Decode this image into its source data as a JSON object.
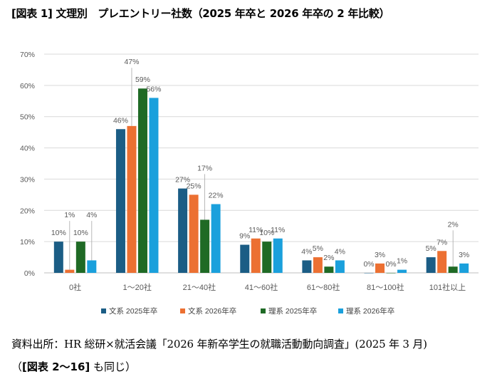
{
  "title": "[図表 1] 文理別　プレエントリー社数（2025 年卒と 2026 年卒の 2 年比較）",
  "source_line": "資料出所：HR 総研×就活会議「2026 年新卒学生の就職活動動向調査」(2025 年 3 月)",
  "note": {
    "open": "（",
    "ref": "[図表 2〜16]",
    "rest": " も同じ）"
  },
  "chart_data": {
    "type": "bar",
    "categories": [
      "0社",
      "1〜20社",
      "21〜40社",
      "41〜60社",
      "61〜80社",
      "81〜100社",
      "101社以上"
    ],
    "series": [
      {
        "name": "文系 2025年卒",
        "color": "#1b5d85",
        "values": [
          10,
          46,
          27,
          9,
          4,
          0,
          5
        ]
      },
      {
        "name": "文系 2026年卒",
        "color": "#ec7032",
        "values": [
          1,
          47,
          25,
          11,
          5,
          3,
          7
        ]
      },
      {
        "name": "理系 2025年卒",
        "color": "#1f6a25",
        "values": [
          10,
          59,
          17,
          10,
          2,
          0,
          2
        ]
      },
      {
        "name": "理系 2026年卒",
        "color": "#1aa0dc",
        "values": [
          4,
          56,
          22,
          11,
          4,
          1,
          3
        ]
      }
    ],
    "ylim": [
      0,
      70
    ],
    "yticks": [
      "0%",
      "10%",
      "20%",
      "30%",
      "40%",
      "50%",
      "60%",
      "70%"
    ],
    "data_labels": [
      [
        "10%",
        "46%",
        "27%",
        "9%",
        "4%",
        "0%",
        "5%"
      ],
      [
        "1%",
        "47%",
        "25%",
        "11%",
        "5%",
        "3%",
        "7%"
      ],
      [
        "10%",
        "59%",
        "17%",
        "10%",
        "2%",
        "0%",
        "2%"
      ],
      [
        "4%",
        "56%",
        "22%",
        "11%",
        "4%",
        "1%",
        "3%"
      ]
    ],
    "grid": true,
    "legend_position": "bottom"
  }
}
